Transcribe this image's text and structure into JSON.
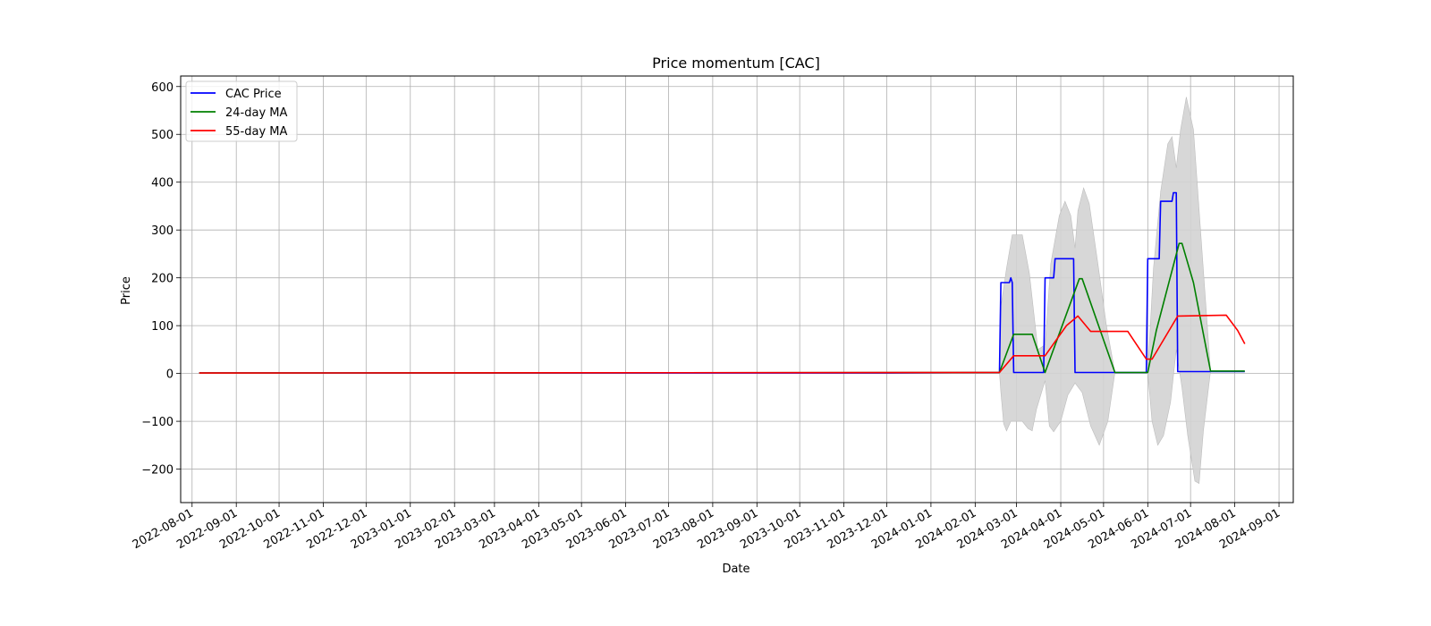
{
  "chart_data": {
    "type": "line",
    "title": "Price momentum [CAC]",
    "xlabel": "Date",
    "ylabel": "Price",
    "x_is_date": true,
    "xlim": [
      "2022-07-24",
      "2024-09-11"
    ],
    "ylim": [
      -270,
      622
    ],
    "grid": true,
    "legend_position": "upper-left",
    "x_ticks": [
      "2022-08-01",
      "2022-09-01",
      "2022-10-01",
      "2022-11-01",
      "2022-12-01",
      "2023-01-01",
      "2023-02-01",
      "2023-03-01",
      "2023-04-01",
      "2023-05-01",
      "2023-06-01",
      "2023-07-01",
      "2023-08-01",
      "2023-09-01",
      "2023-10-01",
      "2023-11-01",
      "2023-12-01",
      "2024-01-01",
      "2024-02-01",
      "2024-03-01",
      "2024-04-01",
      "2024-05-01",
      "2024-06-01",
      "2024-07-01",
      "2024-08-01",
      "2024-09-01"
    ],
    "y_ticks": [
      -200,
      -100,
      0,
      100,
      200,
      300,
      400,
      500,
      600
    ],
    "y_tick_labels": [
      "−200",
      "−100",
      "0",
      "100",
      "200",
      "300",
      "400",
      "500",
      "600"
    ],
    "series": [
      {
        "name": "CAC Price",
        "color": "#0000ff",
        "points": [
          [
            "2022-08-06",
            1
          ],
          [
            "2023-12-01",
            1
          ],
          [
            "2024-02-18",
            2
          ],
          [
            "2024-02-19",
            190
          ],
          [
            "2024-02-25",
            190
          ],
          [
            "2024-02-26",
            200
          ],
          [
            "2024-02-27",
            190
          ],
          [
            "2024-02-28",
            2
          ],
          [
            "2024-03-20",
            2
          ],
          [
            "2024-03-21",
            200
          ],
          [
            "2024-03-27",
            200
          ],
          [
            "2024-03-28",
            240
          ],
          [
            "2024-04-10",
            240
          ],
          [
            "2024-04-11",
            2
          ],
          [
            "2024-05-31",
            2
          ],
          [
            "2024-06-01",
            240
          ],
          [
            "2024-06-09",
            240
          ],
          [
            "2024-06-10",
            360
          ],
          [
            "2024-06-18",
            360
          ],
          [
            "2024-06-19",
            378
          ],
          [
            "2024-06-21",
            378
          ],
          [
            "2024-06-22",
            4
          ],
          [
            "2024-08-08",
            4
          ]
        ]
      },
      {
        "name": "24-day MA",
        "color": "#008000",
        "points": [
          [
            "2022-08-06",
            1
          ],
          [
            "2024-02-18",
            2
          ],
          [
            "2024-02-28",
            82
          ],
          [
            "2024-03-12",
            82
          ],
          [
            "2024-03-21",
            2
          ],
          [
            "2024-04-14",
            198
          ],
          [
            "2024-04-16",
            198
          ],
          [
            "2024-05-09",
            2
          ],
          [
            "2024-06-01",
            2
          ],
          [
            "2024-06-07",
            90
          ],
          [
            "2024-06-23",
            272
          ],
          [
            "2024-06-25",
            272
          ],
          [
            "2024-07-03",
            190
          ],
          [
            "2024-07-15",
            5
          ],
          [
            "2024-08-08",
            5
          ]
        ]
      },
      {
        "name": "55-day MA",
        "color": "#ff0000",
        "points": [
          [
            "2022-08-06",
            1
          ],
          [
            "2024-02-18",
            2
          ],
          [
            "2024-02-28",
            37
          ],
          [
            "2024-03-21",
            37
          ],
          [
            "2024-04-05",
            100
          ],
          [
            "2024-04-13",
            120
          ],
          [
            "2024-04-22",
            88
          ],
          [
            "2024-05-18",
            88
          ],
          [
            "2024-05-31",
            30
          ],
          [
            "2024-06-04",
            30
          ],
          [
            "2024-06-10",
            60
          ],
          [
            "2024-06-22",
            120
          ],
          [
            "2024-07-26",
            122
          ],
          [
            "2024-08-03",
            90
          ],
          [
            "2024-08-08",
            62
          ]
        ]
      }
    ],
    "band": {
      "color": "#d3d3d3",
      "upper": [
        [
          "2022-08-06",
          1
        ],
        [
          "2024-02-18",
          2
        ],
        [
          "2024-02-19",
          140
        ],
        [
          "2024-02-23",
          220
        ],
        [
          "2024-02-27",
          290
        ],
        [
          "2024-03-05",
          290
        ],
        [
          "2024-03-10",
          210
        ],
        [
          "2024-03-16",
          50
        ],
        [
          "2024-03-21",
          60
        ],
        [
          "2024-03-25",
          230
        ],
        [
          "2024-03-31",
          330
        ],
        [
          "2024-04-04",
          360
        ],
        [
          "2024-04-08",
          330
        ],
        [
          "2024-04-11",
          262
        ],
        [
          "2024-04-13",
          340
        ],
        [
          "2024-04-17",
          388
        ],
        [
          "2024-04-21",
          355
        ],
        [
          "2024-04-27",
          230
        ],
        [
          "2024-05-03",
          100
        ],
        [
          "2024-05-09",
          2
        ],
        [
          "2024-06-01",
          2
        ],
        [
          "2024-06-05",
          220
        ],
        [
          "2024-06-10",
          380
        ],
        [
          "2024-06-15",
          480
        ],
        [
          "2024-06-18",
          495
        ],
        [
          "2024-06-21",
          430
        ],
        [
          "2024-06-24",
          510
        ],
        [
          "2024-06-28",
          578
        ],
        [
          "2024-07-03",
          510
        ],
        [
          "2024-07-08",
          300
        ],
        [
          "2024-07-15",
          5
        ],
        [
          "2024-08-08",
          5
        ]
      ],
      "lower": [
        [
          "2022-08-06",
          1
        ],
        [
          "2024-02-18",
          2
        ],
        [
          "2024-02-19",
          -40
        ],
        [
          "2024-02-21",
          -105
        ],
        [
          "2024-02-23",
          -120
        ],
        [
          "2024-02-26",
          -100
        ],
        [
          "2024-03-05",
          -100
        ],
        [
          "2024-03-09",
          -115
        ],
        [
          "2024-03-12",
          -120
        ],
        [
          "2024-03-15",
          -75
        ],
        [
          "2024-03-21",
          -15
        ],
        [
          "2024-03-24",
          -110
        ],
        [
          "2024-03-27",
          -122
        ],
        [
          "2024-04-01",
          -100
        ],
        [
          "2024-04-06",
          -45
        ],
        [
          "2024-04-11",
          -20
        ],
        [
          "2024-04-16",
          -40
        ],
        [
          "2024-04-22",
          -110
        ],
        [
          "2024-04-28",
          -150
        ],
        [
          "2024-05-04",
          -100
        ],
        [
          "2024-05-09",
          2
        ],
        [
          "2024-06-01",
          2
        ],
        [
          "2024-06-04",
          -100
        ],
        [
          "2024-06-08",
          -150
        ],
        [
          "2024-06-12",
          -130
        ],
        [
          "2024-06-17",
          -60
        ],
        [
          "2024-06-21",
          50
        ],
        [
          "2024-06-25",
          -30
        ],
        [
          "2024-06-29",
          -130
        ],
        [
          "2024-07-04",
          -225
        ],
        [
          "2024-07-07",
          -230
        ],
        [
          "2024-07-10",
          -120
        ],
        [
          "2024-07-15",
          5
        ],
        [
          "2024-08-08",
          5
        ]
      ]
    }
  }
}
